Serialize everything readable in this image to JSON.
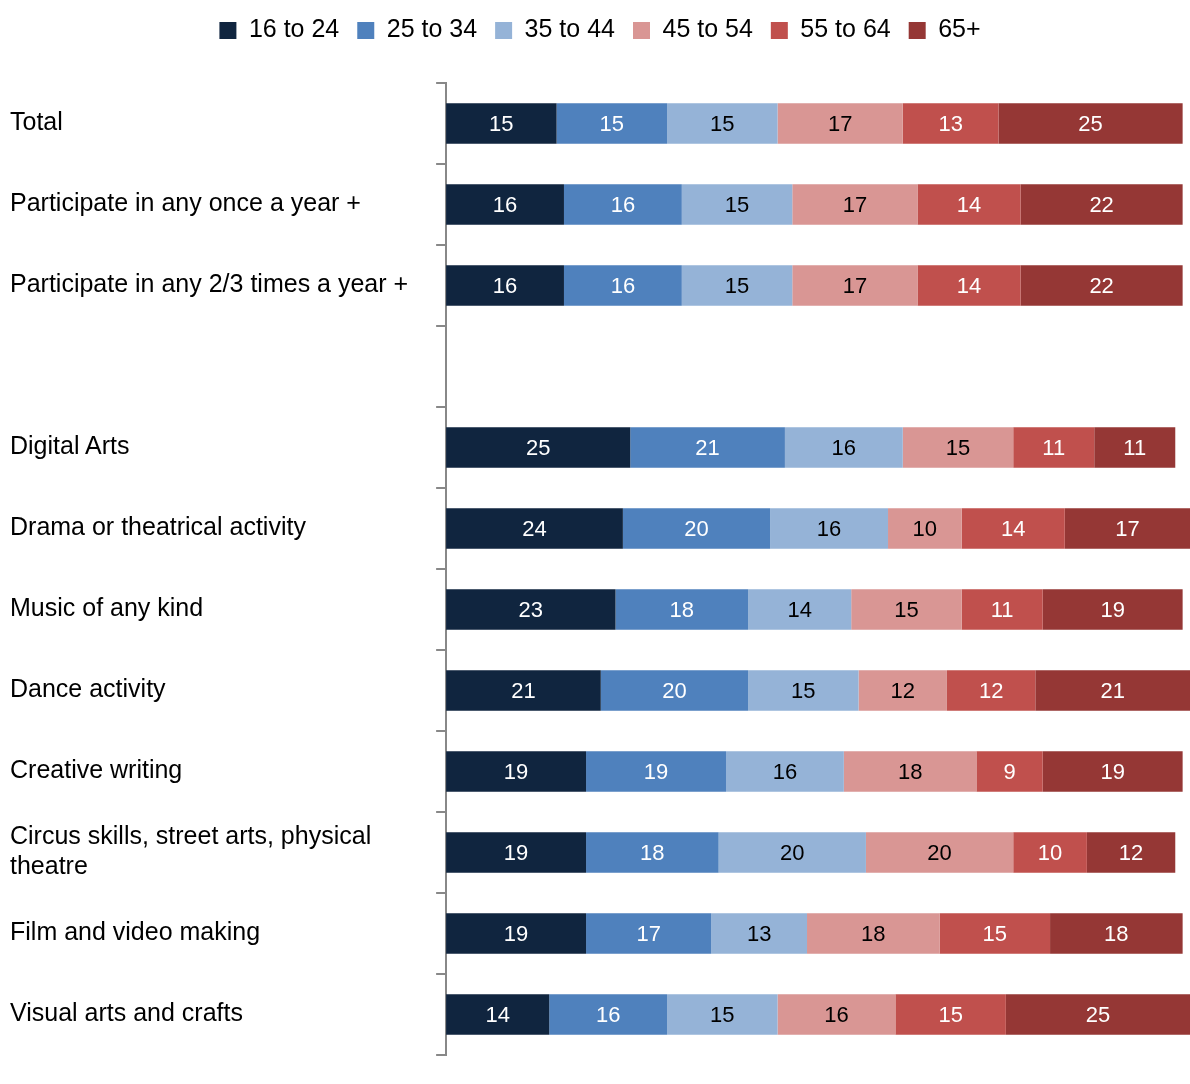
{
  "chart_data": {
    "type": "bar",
    "orientation": "horizontal",
    "stacked": true,
    "legend": "top",
    "data_labels": true,
    "xlim": [
      0,
      101
    ],
    "categories": [
      "Total",
      "Participate in any once a year +",
      "Participate in any 2/3 times a year +",
      null,
      "Digital Arts",
      "Drama or theatrical activity",
      "Music of any kind",
      "Dance activity",
      "Creative writing",
      "Circus skills, street arts, physical theatre",
      "Film and video making",
      "Visual arts and crafts"
    ],
    "series": [
      {
        "name": "16 to 24",
        "color": "#10253f",
        "values": [
          15,
          16,
          16,
          null,
          25,
          24,
          23,
          21,
          19,
          19,
          19,
          14
        ]
      },
      {
        "name": "25 to 34",
        "color": "#4f81bd",
        "values": [
          15,
          16,
          16,
          null,
          21,
          20,
          18,
          20,
          19,
          18,
          17,
          16
        ]
      },
      {
        "name": "35 to 44",
        "color": "#95b3d7",
        "values": [
          15,
          15,
          15,
          null,
          16,
          16,
          14,
          15,
          16,
          20,
          13,
          15
        ]
      },
      {
        "name": "45 to 54",
        "color": "#d99694",
        "values": [
          17,
          17,
          17,
          null,
          15,
          10,
          15,
          12,
          18,
          20,
          18,
          16
        ]
      },
      {
        "name": "55 to 64",
        "color": "#c0504d",
        "values": [
          13,
          14,
          14,
          null,
          11,
          14,
          11,
          12,
          9,
          10,
          15,
          15
        ]
      },
      {
        "name": "65+",
        "color": "#953735",
        "values": [
          25,
          22,
          22,
          null,
          11,
          17,
          19,
          21,
          19,
          12,
          18,
          25
        ]
      }
    ]
  }
}
